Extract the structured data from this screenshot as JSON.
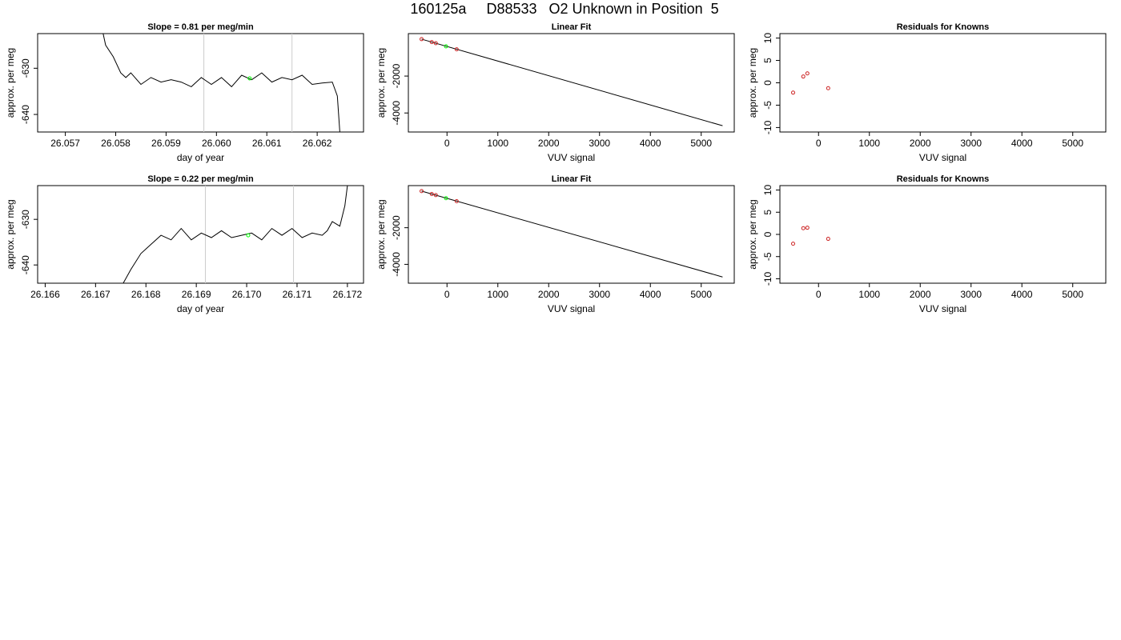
{
  "page": {
    "title": "160125a     D88533   O2 Unknown in Position  5"
  },
  "colors": {
    "trace": "#000000",
    "marker": "#00ff00",
    "residual": "#cc2222",
    "vline": "#cccccc",
    "frame": "#000000"
  },
  "chart_data": [
    {
      "type": "line",
      "title": "Slope =  0.81  per meg/min",
      "xlabel": "day of year",
      "ylabel": "approx. per meg",
      "xlim": [
        26.05645,
        26.06292
      ],
      "ylim": [
        -643.8,
        -622.5
      ],
      "xticks": [
        26.057,
        26.058,
        26.059,
        26.06,
        26.061,
        26.062
      ],
      "xtick_labels": [
        "26.057",
        "26.058",
        "26.059",
        "26.060",
        "26.061",
        "26.062"
      ],
      "yticks": [
        -640,
        -630
      ],
      "ytick_labels": [
        "-640",
        "-630"
      ],
      "vlines": [
        26.05975,
        26.0615
      ],
      "marker": {
        "x": 26.06066,
        "y": -632.2
      },
      "series": [
        {
          "x": [
            26.05775,
            26.0578,
            26.05795,
            26.0581,
            26.0582,
            26.0583,
            26.0585,
            26.0587,
            26.0589,
            26.0591,
            26.0593,
            26.0595,
            26.0597,
            26.0599,
            26.0601,
            26.0603,
            26.0605,
            26.0607,
            26.0609,
            26.0611,
            26.0613,
            26.0615,
            26.0617,
            26.0619,
            26.0621,
            26.0623,
            26.0624,
            26.06245
          ],
          "y": [
            -622.5,
            -625,
            -627.5,
            -631,
            -632,
            -631,
            -633.5,
            -632,
            -633,
            -632.5,
            -633,
            -634,
            -632,
            -633.5,
            -632,
            -634,
            -631.5,
            -632.5,
            -631,
            -633,
            -632,
            -632.5,
            -631.5,
            -633.5,
            -633.2,
            -633,
            -636,
            -643.8
          ]
        }
      ]
    },
    {
      "type": "scatter",
      "title": "Linear Fit",
      "xlabel": "VUV signal",
      "ylabel": "approx. per meg",
      "xlim": [
        -760,
        5650
      ],
      "ylim": [
        -5030,
        300
      ],
      "xticks": [
        0,
        1000,
        2000,
        3000,
        4000,
        5000
      ],
      "xtick_labels": [
        "0",
        "1000",
        "2000",
        "3000",
        "4000",
        "5000"
      ],
      "yticks": [
        -4000,
        -2000
      ],
      "ytick_labels": [
        "-4000",
        "-2000"
      ],
      "fit_line": {
        "x": [
          -500,
          5420
        ],
        "y": [
          0,
          -4690
        ]
      },
      "series": [
        {
          "name": "knowns",
          "x": [
            -500,
            -300,
            -220,
            190
          ],
          "y": [
            0,
            -160,
            -220,
            -550
          ]
        },
        {
          "name": "unknown",
          "x": [
            -20
          ],
          "y": [
            -390
          ]
        }
      ]
    },
    {
      "type": "scatter",
      "title": "Residuals for Knowns",
      "xlabel": "VUV signal",
      "ylabel": "approx. per meg",
      "xlim": [
        -760,
        5650
      ],
      "ylim": [
        -11,
        11
      ],
      "xticks": [
        0,
        1000,
        2000,
        3000,
        4000,
        5000
      ],
      "xtick_labels": [
        "0",
        "1000",
        "2000",
        "3000",
        "4000",
        "5000"
      ],
      "yticks": [
        -10,
        -5,
        0,
        5,
        10
      ],
      "ytick_labels": [
        "-10",
        "-5",
        "0",
        "5",
        "10"
      ],
      "series": [
        {
          "name": "residuals",
          "x": [
            -500,
            -300,
            -220,
            190
          ],
          "y": [
            -2.2,
            1.4,
            2.1,
            -1.2
          ]
        }
      ]
    },
    {
      "type": "line",
      "title": "Slope =  0.22  per meg/min",
      "xlabel": "day of year",
      "ylabel": "approx. per meg",
      "xlim": [
        26.16585,
        26.17232
      ],
      "ylim": [
        -644,
        -622.6
      ],
      "xticks": [
        26.166,
        26.167,
        26.168,
        26.169,
        26.17,
        26.171,
        26.172
      ],
      "xtick_labels": [
        "26.166",
        "26.167",
        "26.168",
        "26.169",
        "26.170",
        "26.171",
        "26.172"
      ],
      "yticks": [
        -640,
        -630
      ],
      "ytick_labels": [
        "-640",
        "-630"
      ],
      "vlines": [
        26.16918,
        26.17093
      ],
      "marker": {
        "x": 26.17003,
        "y": -633.5
      },
      "series": [
        {
          "x": [
            26.16755,
            26.1677,
            26.1679,
            26.1681,
            26.1683,
            26.1685,
            26.1687,
            26.1689,
            26.1691,
            26.1693,
            26.1695,
            26.1697,
            26.1699,
            26.1701,
            26.1703,
            26.1705,
            26.1707,
            26.1709,
            26.1711,
            26.1713,
            26.1715,
            26.1716,
            26.1717,
            26.17185,
            26.17195,
            26.172
          ],
          "y": [
            -644,
            -641,
            -637.5,
            -635.5,
            -633.5,
            -634.5,
            -632,
            -634.5,
            -633,
            -634,
            -632.5,
            -634,
            -633.5,
            -633,
            -634.5,
            -632,
            -633.5,
            -632,
            -634,
            -633,
            -633.5,
            -632.5,
            -630.5,
            -631.5,
            -627,
            -622.6
          ]
        }
      ]
    },
    {
      "type": "scatter",
      "title": "Linear Fit",
      "xlabel": "VUV signal",
      "ylabel": "approx. per meg",
      "xlim": [
        -760,
        5650
      ],
      "ylim": [
        -5030,
        300
      ],
      "xticks": [
        0,
        1000,
        2000,
        3000,
        4000,
        5000
      ],
      "xtick_labels": [
        "0",
        "1000",
        "2000",
        "3000",
        "4000",
        "5000"
      ],
      "yticks": [
        -4000,
        -2000
      ],
      "ytick_labels": [
        "-4000",
        "-2000"
      ],
      "fit_line": {
        "x": [
          -500,
          5420
        ],
        "y": [
          0,
          -4690
        ]
      },
      "series": [
        {
          "name": "knowns",
          "x": [
            -500,
            -300,
            -220,
            190
          ],
          "y": [
            0,
            -160,
            -220,
            -550
          ]
        },
        {
          "name": "unknown",
          "x": [
            -20
          ],
          "y": [
            -390
          ]
        }
      ]
    },
    {
      "type": "scatter",
      "title": "Residuals for Knowns",
      "xlabel": "VUV signal",
      "ylabel": "approx. per meg",
      "xlim": [
        -760,
        5650
      ],
      "ylim": [
        -11,
        11
      ],
      "xticks": [
        0,
        1000,
        2000,
        3000,
        4000,
        5000
      ],
      "xtick_labels": [
        "0",
        "1000",
        "2000",
        "3000",
        "4000",
        "5000"
      ],
      "yticks": [
        -10,
        -5,
        0,
        5,
        10
      ],
      "ytick_labels": [
        "-10",
        "-5",
        "0",
        "5",
        "10"
      ],
      "series": [
        {
          "name": "residuals",
          "x": [
            -500,
            -300,
            -220,
            190
          ],
          "y": [
            -2.1,
            1.4,
            1.5,
            -1.0
          ]
        }
      ]
    }
  ]
}
